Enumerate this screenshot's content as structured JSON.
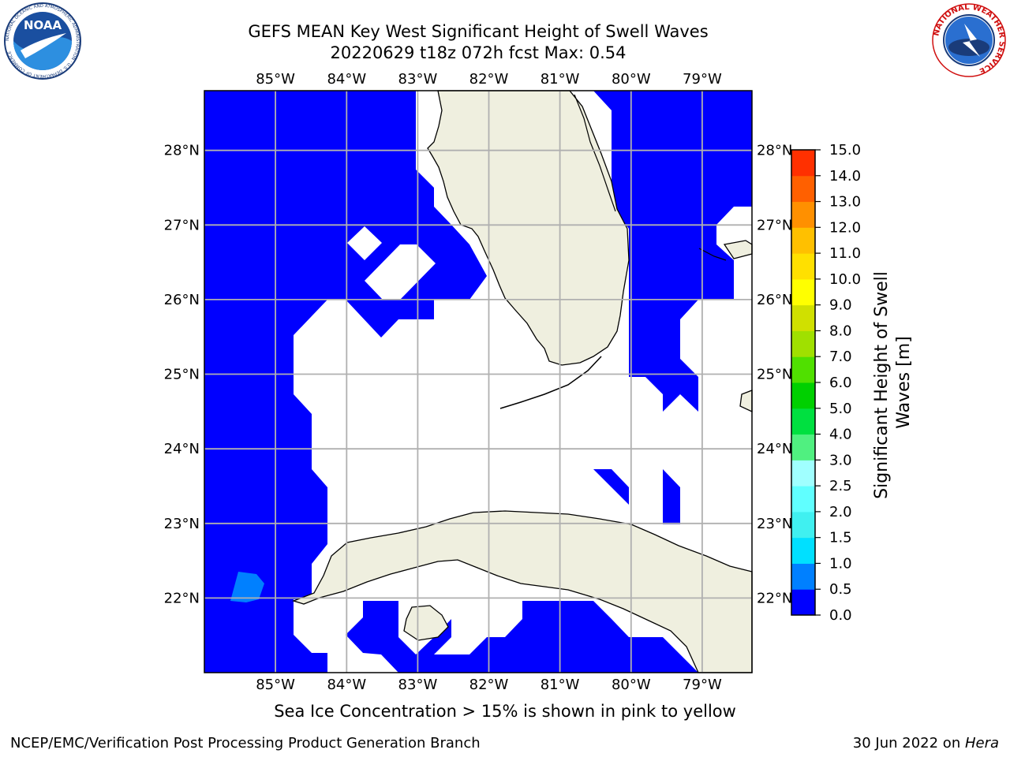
{
  "header": {
    "title_line1": "GEFS MEAN Key West Significant Height of Swell Waves",
    "title_line2": "20220629 t18z 072h fcst   Max: 0.54"
  },
  "caption": "Sea Ice Concentration > 15% is shown in pink to yellow",
  "footer": {
    "left": "NCEP/EMC/Verification Post Processing Product Generation Branch",
    "right_date": "30 Jun 2022 on ",
    "right_machine": "Hera"
  },
  "logos": {
    "noaa_label": "NOAA",
    "noaa_ring_text": "NATIONAL OCEANIC AND ATMOSPHERIC ADMINISTRATION · U.S. DEPARTMENT OF COMMERCE",
    "nws_ring_text": "NATIONAL WEATHER SERVICE"
  },
  "map": {
    "lon_labels": [
      "85°W",
      "84°W",
      "83°W",
      "82°W",
      "81°W",
      "80°W",
      "79°W"
    ],
    "lon_values": [
      -85,
      -84,
      -83,
      -82,
      -81,
      -80,
      -79
    ],
    "lat_labels": [
      "22°N",
      "23°N",
      "24°N",
      "25°N",
      "26°N",
      "27°N",
      "28°N"
    ],
    "lat_values": [
      22,
      23,
      24,
      25,
      26,
      27,
      28
    ],
    "lon_range": [
      -86,
      -78.3
    ],
    "lat_range": [
      21,
      28.8
    ],
    "land_color": "#efefdf",
    "ocean_color": "#0000ff",
    "missing_color": "#ffffff",
    "grid_color": "#b0b0b0",
    "small_patch_value": 0.54
  },
  "colorbar": {
    "label": "Significant Height of Swell Waves [m]",
    "label_line1": "Significant Height of Swell",
    "label_line2": "Waves [m]",
    "ticks": [
      "0.0",
      "0.5",
      "1.0",
      "1.5",
      "2.0",
      "2.5",
      "3.0",
      "4.0",
      "5.0",
      "6.0",
      "7.0",
      "8.0",
      "9.0",
      "10.0",
      "11.0",
      "12.0",
      "13.0",
      "14.0",
      "15.0"
    ],
    "colors": [
      "#0000ff",
      "#0080ff",
      "#00e0ff",
      "#40f0f0",
      "#60ffff",
      "#a0ffff",
      "#50f080",
      "#00e040",
      "#00d000",
      "#50e000",
      "#a0e000",
      "#d0e000",
      "#ffff00",
      "#ffe000",
      "#ffc000",
      "#ff9000",
      "#ff6000",
      "#ff3000"
    ]
  }
}
